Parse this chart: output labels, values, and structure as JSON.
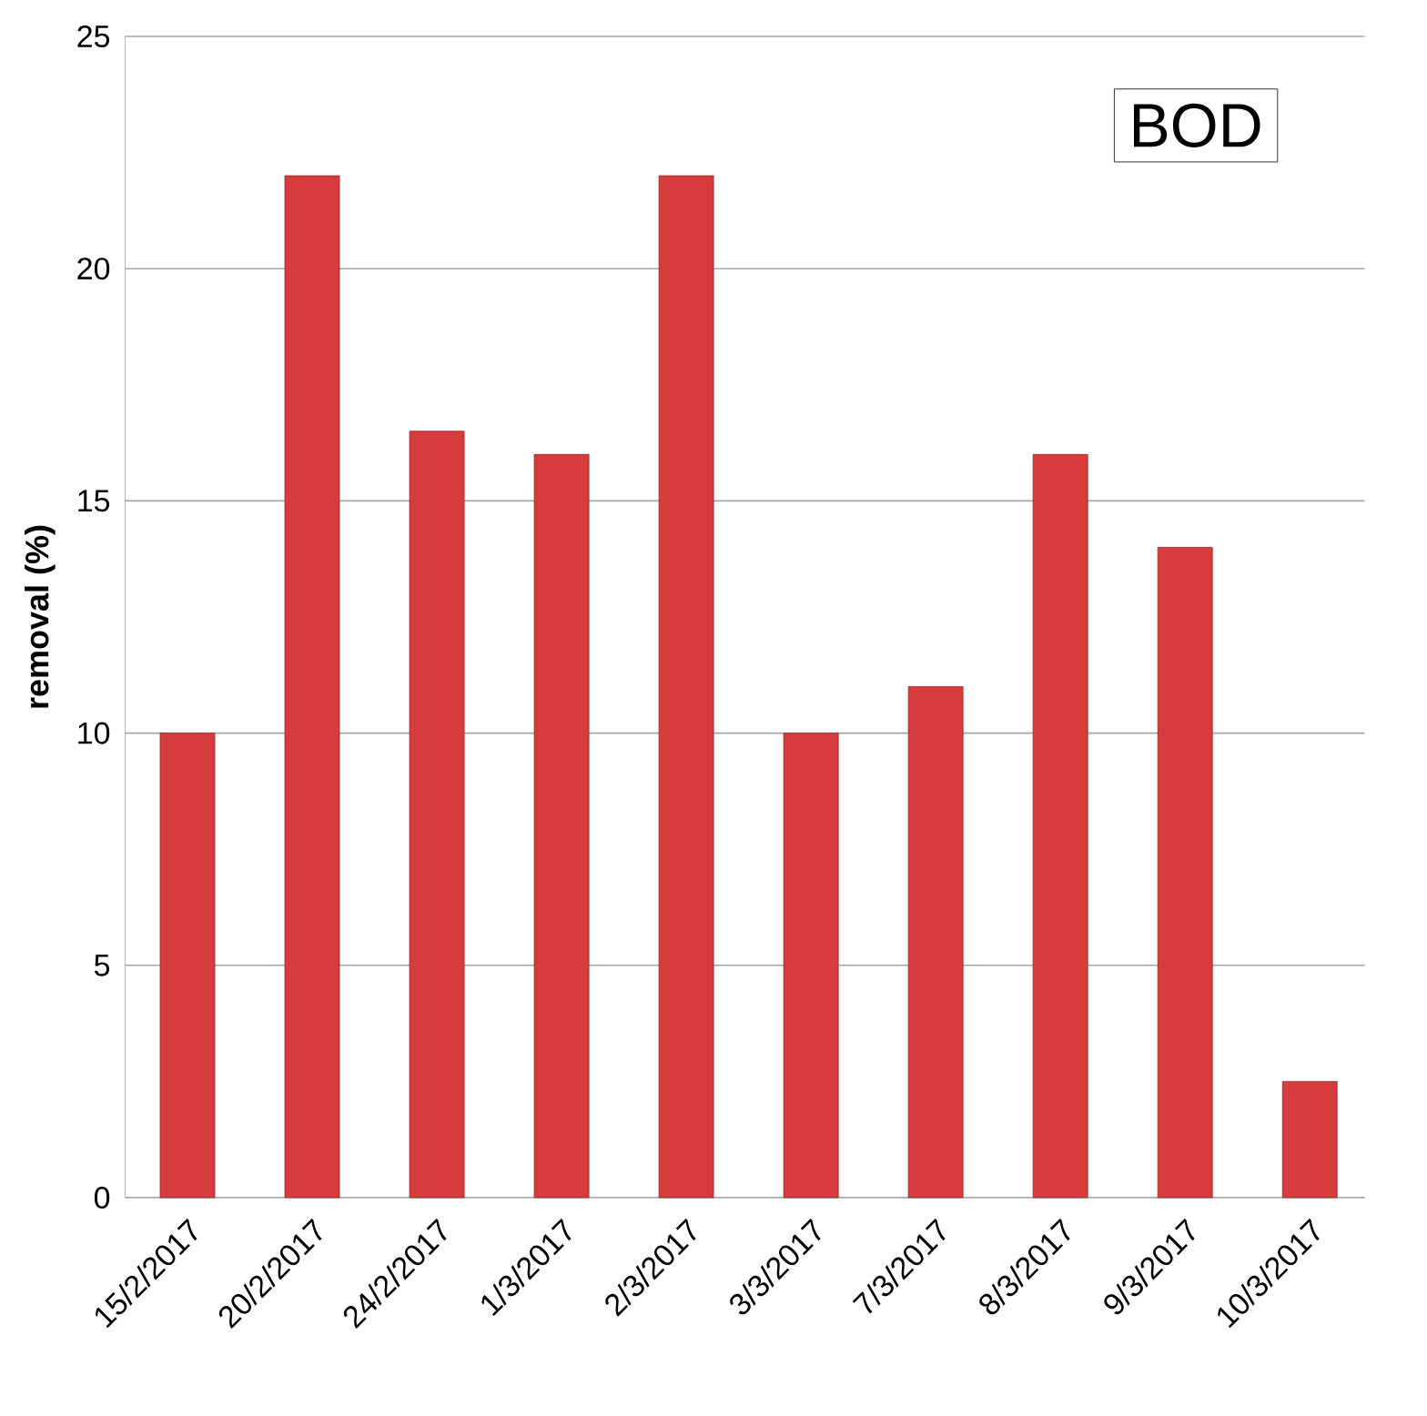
{
  "chart_data": {
    "type": "bar",
    "ylabel": "removal (%)",
    "categories": [
      "15/2/2017",
      "20/2/2017",
      "24/2/2017",
      "1/3/2017",
      "2/3/2017",
      "3/3/2017",
      "7/3/2017",
      "8/3/2017",
      "9/3/2017",
      "10/3/2017"
    ],
    "values": [
      10,
      22,
      16.5,
      16,
      22,
      10,
      11,
      16,
      14,
      2.5
    ],
    "color": "#d63c3c",
    "ylim": [
      0,
      25
    ],
    "yticks": [
      0,
      5,
      10,
      15,
      20,
      25
    ],
    "grid": "y",
    "annotations": [
      "BOD"
    ]
  }
}
